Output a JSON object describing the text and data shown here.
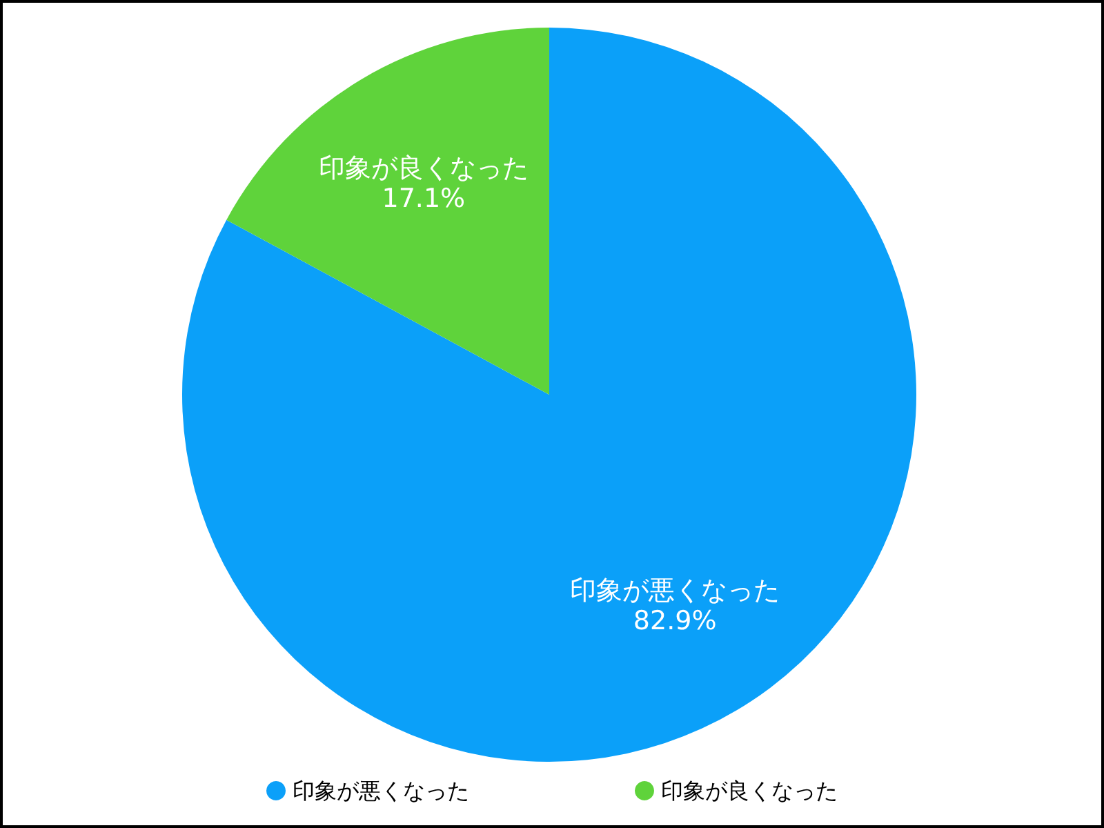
{
  "chart_data": {
    "type": "pie",
    "categories": [
      "印象が悪くなった",
      "印象が良くなった"
    ],
    "values": [
      82.9,
      17.1
    ],
    "colors": [
      "#0ba0f9",
      "#5fd33b"
    ],
    "value_labels": [
      "82.9%",
      "17.1%"
    ],
    "legend": "bottom"
  }
}
